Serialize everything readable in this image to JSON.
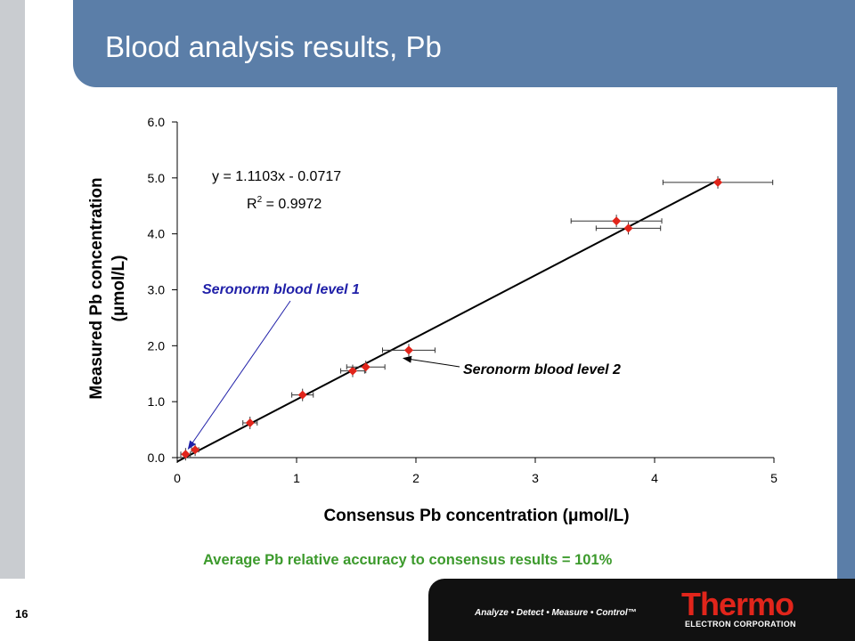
{
  "slide": {
    "title": "Blood analysis results, Pb",
    "summary": "Average Pb relative accuracy to consensus results = 101%",
    "page_number": "16"
  },
  "footer": {
    "tagline": "Analyze • Detect • Measure • Control™",
    "brand": "Thermo",
    "brand_sub": "ELECTRON CORPORATION"
  },
  "colors": {
    "title_bar": "#5b7ea8",
    "point": "#e1251b",
    "annotation_level1": "#1f1fa8",
    "summary_text": "#3c9a2c",
    "brand": "#e1251b"
  },
  "chart_data": {
    "type": "scatter",
    "xlabel": "Consensus Pb concentration (μmol/L)",
    "ylabel_line1": "Measured Pb concentration",
    "ylabel_line2": "(μmol/L)",
    "xlim": [
      0,
      5
    ],
    "ylim": [
      0,
      6
    ],
    "x_ticks": [
      "0",
      "1",
      "2",
      "3",
      "4",
      "5"
    ],
    "y_ticks": [
      "0.0",
      "1.0",
      "2.0",
      "3.0",
      "4.0",
      "5.0",
      "6.0"
    ],
    "grid": false,
    "points": [
      {
        "x": 0.07,
        "y": 0.06,
        "xerr": 0.04
      },
      {
        "x": 0.15,
        "y": 0.14,
        "xerr": 0.03
      },
      {
        "x": 0.61,
        "y": 0.62,
        "xerr": 0.06
      },
      {
        "x": 1.05,
        "y": 1.12,
        "xerr": 0.09
      },
      {
        "x": 1.47,
        "y": 1.55,
        "xerr": 0.1
      },
      {
        "x": 1.58,
        "y": 1.62,
        "xerr": 0.16
      },
      {
        "x": 1.94,
        "y": 1.92,
        "xerr": 0.22
      },
      {
        "x": 3.68,
        "y": 4.23,
        "xerr": 0.38
      },
      {
        "x": 3.78,
        "y": 4.1,
        "xerr": 0.27
      },
      {
        "x": 4.53,
        "y": 4.92,
        "xerr": 0.46
      }
    ],
    "trendline": {
      "slope": 1.1103,
      "intercept": -0.0717,
      "x_range": [
        0,
        4.55
      ]
    },
    "equation": "y = 1.1103x - 0.0717",
    "r_squared": {
      "prefix": "R",
      "sup": "2",
      "value": " = 0.9972"
    },
    "annotations": [
      {
        "text": "Seronorm blood level 1",
        "point_index": 0
      },
      {
        "text": "Seronorm blood level 2",
        "point_index": 6
      }
    ]
  }
}
